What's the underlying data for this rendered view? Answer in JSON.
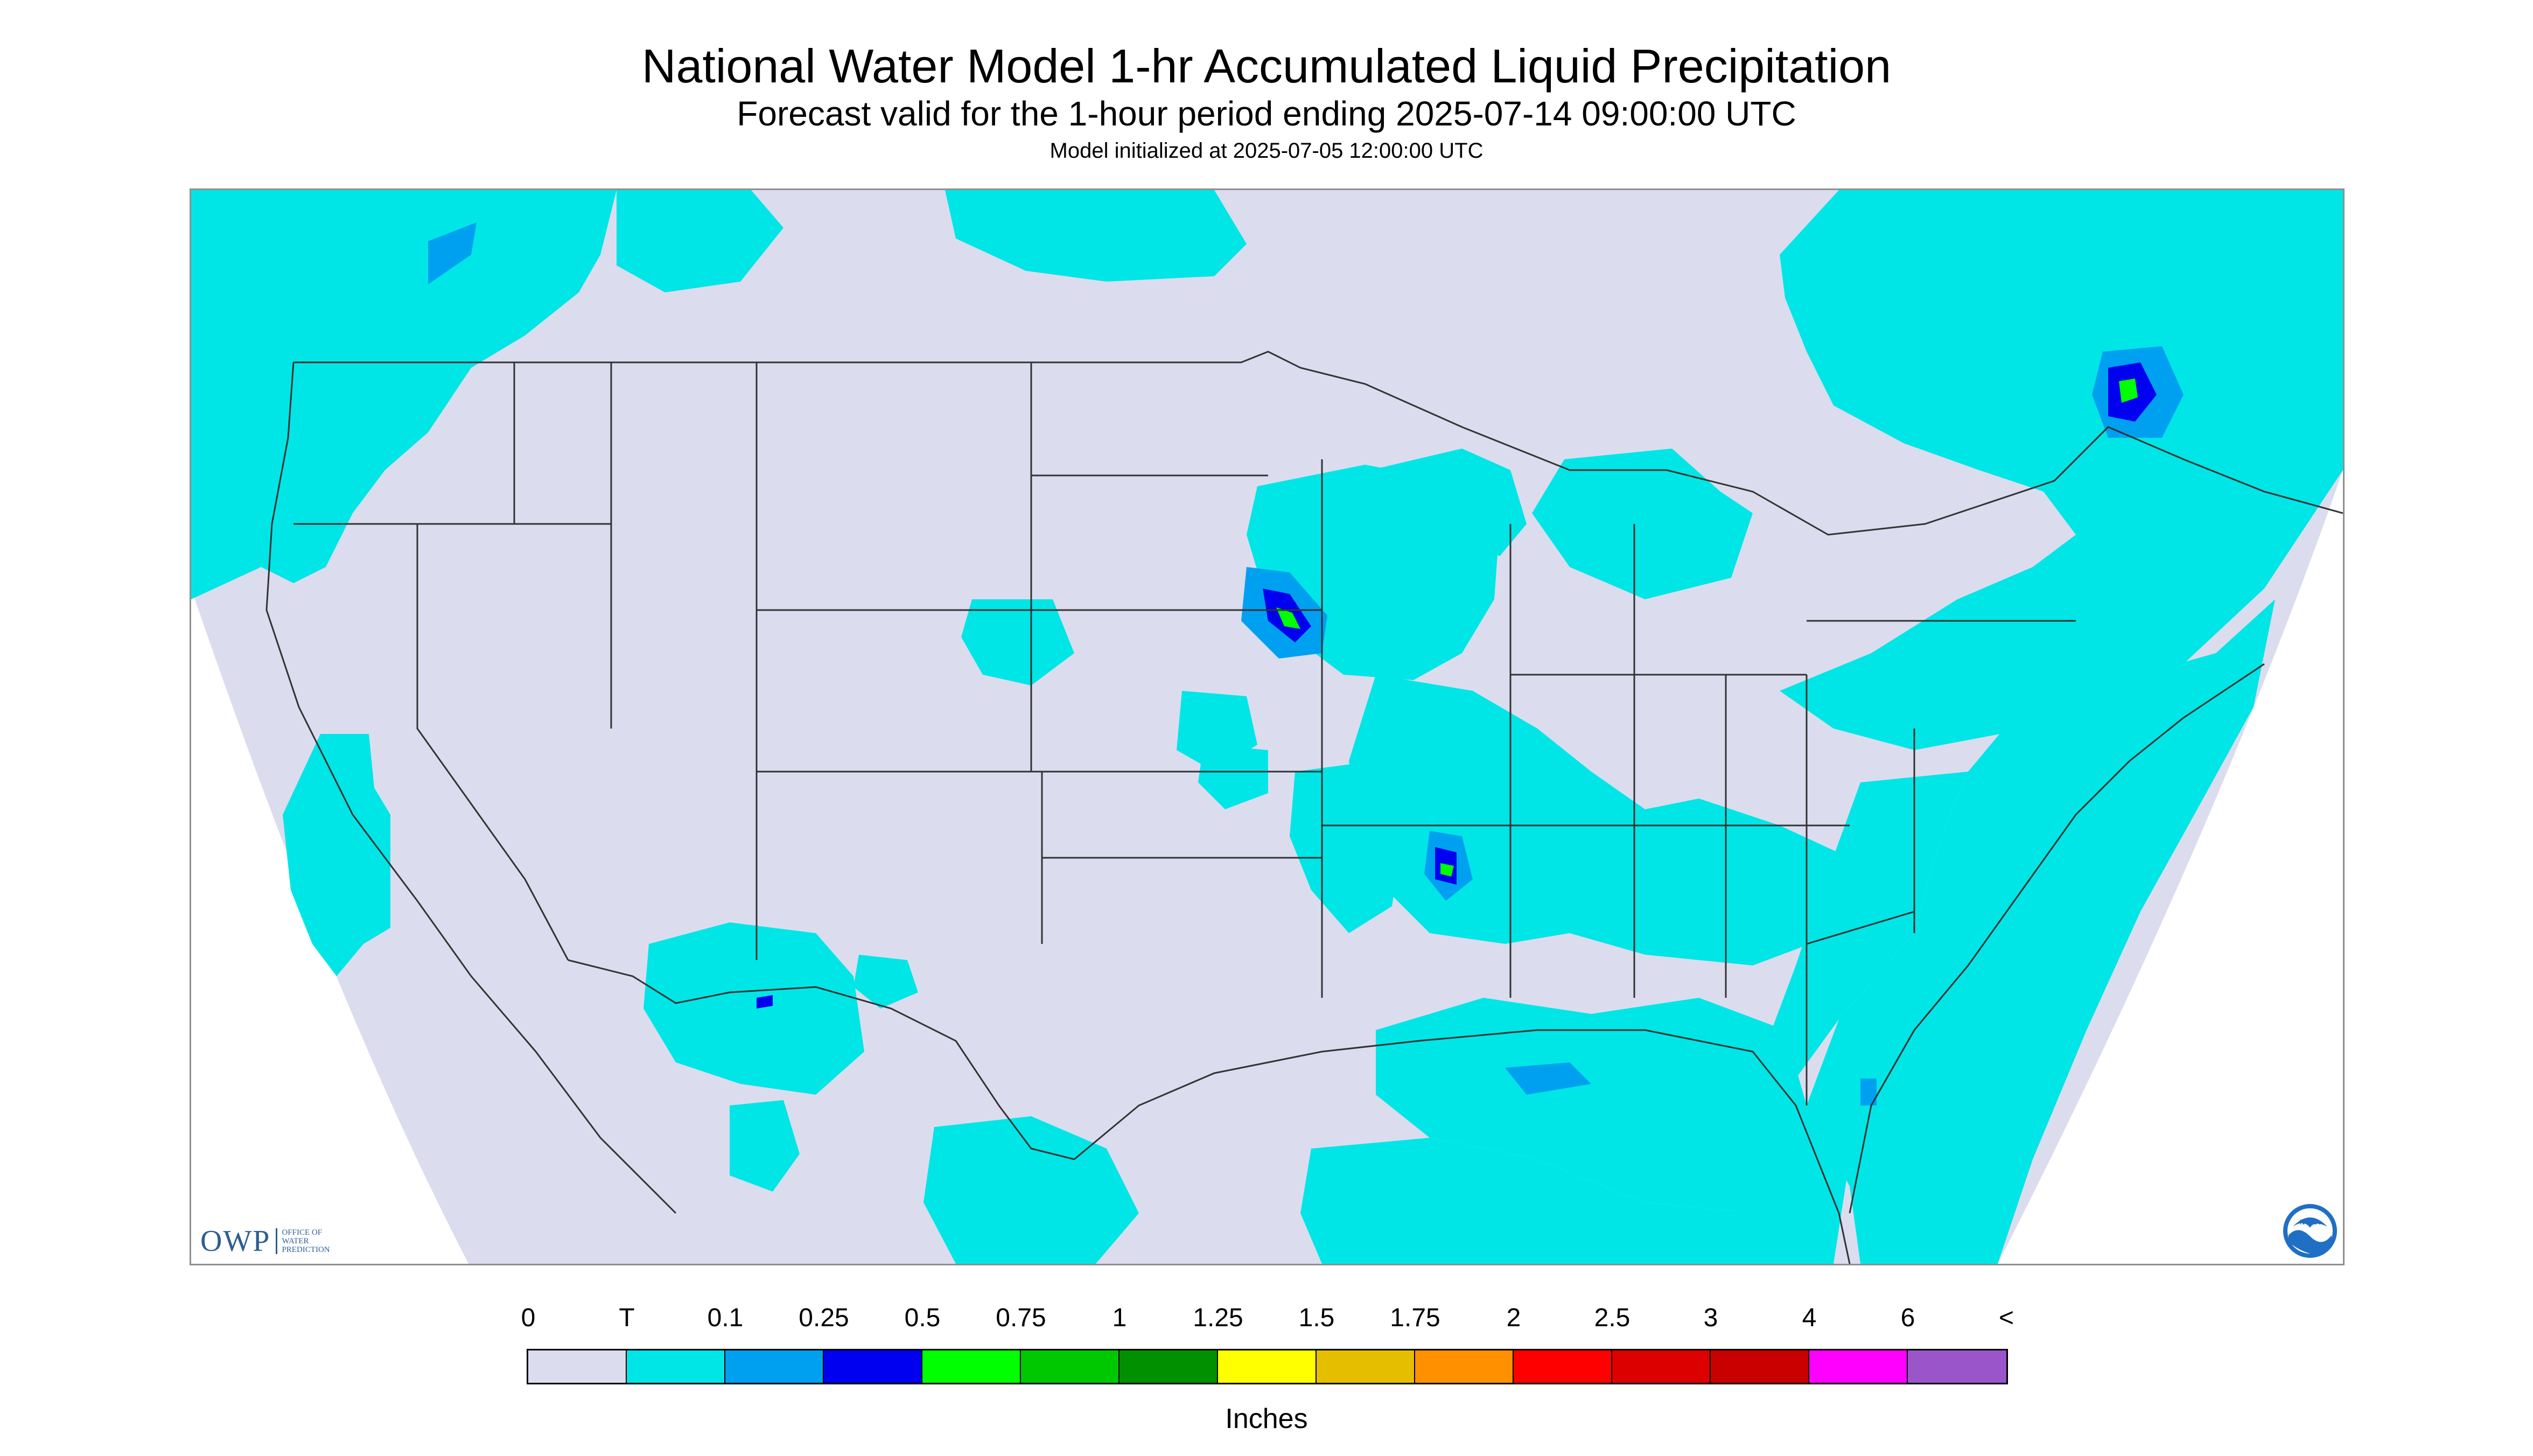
{
  "header": {
    "title": "National Water Model 1-hr Accumulated Liquid Precipitation",
    "subtitle": "Forecast valid for the 1-hour period ending 2025-07-14 09:00:00 UTC",
    "init_line": "Model initialized at 2025-07-05 12:00:00 UTC"
  },
  "map": {
    "region": "CONUS",
    "background_color": "#dcdcef",
    "outside_color": "#ffffff",
    "rain_color": "#00e6e6"
  },
  "logos": {
    "owp_text": "OWP",
    "owp_subtitle_lines": [
      "OFFICE OF",
      "WATER",
      "PREDICTION"
    ],
    "noaa_text": "NOAA"
  },
  "legend": {
    "labels": [
      "0",
      "T",
      "0.1",
      "0.25",
      "0.5",
      "0.75",
      "1",
      "1.25",
      "1.5",
      "1.75",
      "2",
      "2.5",
      "3",
      "4",
      "6",
      "<"
    ],
    "colors": [
      "#dcdcef",
      "#00e6e6",
      "#00a0f0",
      "#0000f0",
      "#00ff00",
      "#00c800",
      "#009000",
      "#ffff00",
      "#e6be00",
      "#ff9000",
      "#ff0000",
      "#dc0000",
      "#c80000",
      "#ff00ff",
      "#9955c9"
    ],
    "units": "Inches"
  }
}
